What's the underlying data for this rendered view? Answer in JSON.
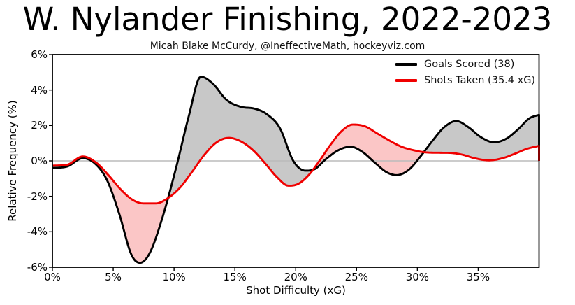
{
  "header": {
    "title": "W. Nylander Finishing, 2022-2023",
    "subtitle": "Micah Blake McCurdy, @IneffectiveMath, hockeyviz.com"
  },
  "chart_data": {
    "type": "area",
    "title": "W. Nylander Finishing, 2022-2023",
    "xlabel": "Shot Difficulty (xG)",
    "ylabel": "Relative Frequency (%)",
    "xlim": [
      0,
      40
    ],
    "ylim": [
      -6,
      6
    ],
    "grid": "zero-line-only",
    "zero_line_color": "#bbbbbb",
    "x_ticks": {
      "values": [
        0,
        5,
        10,
        15,
        20,
        25,
        30,
        35
      ],
      "labels": [
        "0%",
        "5%",
        "10%",
        "15%",
        "20%",
        "25%",
        "30%",
        "35%"
      ]
    },
    "y_ticks": {
      "values": [
        6,
        4,
        2,
        0,
        -2,
        -4,
        -6
      ],
      "labels": [
        "6%",
        "4%",
        "2%",
        "0%",
        "-2%",
        "-4%",
        "-6%"
      ]
    },
    "legend": {
      "position": "top-right",
      "entries": [
        {
          "label": "Goals Scored (38)",
          "color": "#000000"
        },
        {
          "label": "Shots Taken (35.4 xG)",
          "color": "#f00000"
        }
      ]
    },
    "fill_colors": {
      "black_above_red": "#c8c8c8",
      "red_above_black": "#fbc6c6"
    },
    "closes_to_zero_at_right_edge": true,
    "series": [
      {
        "name": "Goals Scored (38)",
        "color": "#000000",
        "points": [
          [
            0,
            -0.4
          ],
          [
            1.2,
            -0.32
          ],
          [
            2.5,
            0.15
          ],
          [
            3.5,
            -0.15
          ],
          [
            4.5,
            -1.1
          ],
          [
            5.5,
            -3.0
          ],
          [
            6.5,
            -5.3
          ],
          [
            7.2,
            -5.75
          ],
          [
            8,
            -5.2
          ],
          [
            9,
            -3.3
          ],
          [
            10.2,
            -0.3
          ],
          [
            11.2,
            2.5
          ],
          [
            12.2,
            4.75
          ],
          [
            13.2,
            4.35
          ],
          [
            14.3,
            3.45
          ],
          [
            15.5,
            3.05
          ],
          [
            16.6,
            2.95
          ],
          [
            17.6,
            2.65
          ],
          [
            18.7,
            1.85
          ],
          [
            19.8,
            0
          ],
          [
            20.8,
            -0.55
          ],
          [
            21.6,
            -0.45
          ],
          [
            22.4,
            0.05
          ],
          [
            23.5,
            0.6
          ],
          [
            24.5,
            0.8
          ],
          [
            25.5,
            0.5
          ],
          [
            26.5,
            -0.1
          ],
          [
            27.5,
            -0.65
          ],
          [
            28.3,
            -0.8
          ],
          [
            29.3,
            -0.5
          ],
          [
            30.2,
            0.2
          ],
          [
            31.2,
            1.1
          ],
          [
            32.2,
            1.9
          ],
          [
            33.2,
            2.25
          ],
          [
            34.2,
            1.9
          ],
          [
            35.2,
            1.35
          ],
          [
            36.3,
            1.05
          ],
          [
            37.3,
            1.25
          ],
          [
            38.3,
            1.8
          ],
          [
            39.2,
            2.4
          ],
          [
            40,
            2.6
          ]
        ]
      },
      {
        "name": "Shots Taken (35.4 xG)",
        "color": "#f00000",
        "points": [
          [
            0,
            -0.27
          ],
          [
            1.2,
            -0.22
          ],
          [
            2.5,
            0.25
          ],
          [
            3.6,
            -0.1
          ],
          [
            4.6,
            -0.8
          ],
          [
            5.6,
            -1.6
          ],
          [
            6.6,
            -2.2
          ],
          [
            7.5,
            -2.4
          ],
          [
            8.5,
            -2.4
          ],
          [
            9.5,
            -2.1
          ],
          [
            10.5,
            -1.5
          ],
          [
            11.5,
            -0.6
          ],
          [
            12.5,
            0.35
          ],
          [
            13.5,
            1.05
          ],
          [
            14.5,
            1.3
          ],
          [
            15.5,
            1.1
          ],
          [
            16.5,
            0.6
          ],
          [
            17.5,
            -0.15
          ],
          [
            18.5,
            -0.95
          ],
          [
            19.4,
            -1.4
          ],
          [
            20.2,
            -1.3
          ],
          [
            21,
            -0.85
          ],
          [
            21.9,
            -0.05
          ],
          [
            22.9,
            0.95
          ],
          [
            23.8,
            1.7
          ],
          [
            24.7,
            2.05
          ],
          [
            25.7,
            1.95
          ],
          [
            26.7,
            1.55
          ],
          [
            27.7,
            1.15
          ],
          [
            28.7,
            0.8
          ],
          [
            29.7,
            0.6
          ],
          [
            30.7,
            0.48
          ],
          [
            31.7,
            0.46
          ],
          [
            32.7,
            0.45
          ],
          [
            33.7,
            0.35
          ],
          [
            34.7,
            0.15
          ],
          [
            35.9,
            0.03
          ],
          [
            37,
            0.15
          ],
          [
            38,
            0.4
          ],
          [
            39,
            0.68
          ],
          [
            40,
            0.85
          ]
        ]
      }
    ]
  }
}
